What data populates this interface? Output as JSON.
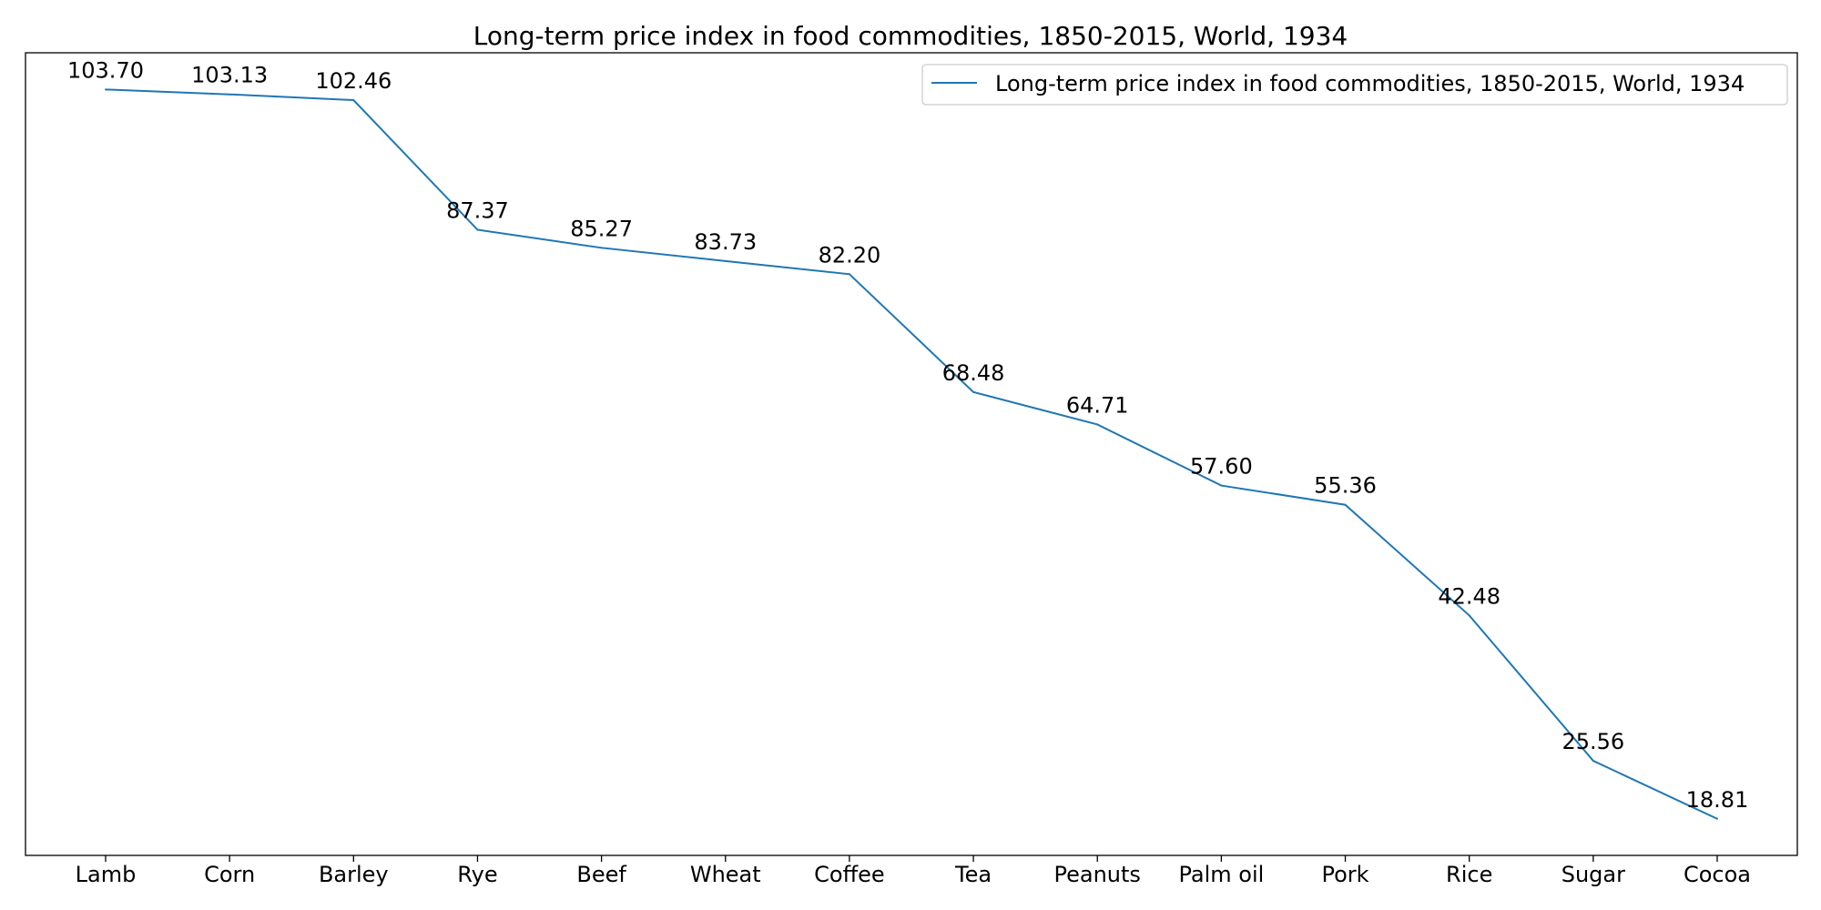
{
  "chart_data": {
    "type": "line",
    "title": "Long-term price index in food commodities, 1850-2015, World, 1934",
    "xlabel": "",
    "ylabel": "",
    "categories": [
      "Lamb",
      "Corn",
      "Barley",
      "Rye",
      "Beef",
      "Wheat",
      "Coffee",
      "Tea",
      "Peanuts",
      "Palm oil",
      "Pork",
      "Rice",
      "Sugar",
      "Cocoa"
    ],
    "series": [
      {
        "name": "Long-term price index in food commodities, 1850-2015, World, 1934",
        "values": [
          103.7,
          103.13,
          102.46,
          87.37,
          85.27,
          83.73,
          82.2,
          68.48,
          64.71,
          57.6,
          55.36,
          42.48,
          25.56,
          18.81
        ],
        "labels": [
          "103.70",
          "103.13",
          "102.46",
          "87.37",
          "85.27",
          "83.73",
          "82.20",
          "68.48",
          "64.71",
          "57.60",
          "55.36",
          "42.48",
          "25.56",
          "18.81"
        ],
        "color": "#1f77b4"
      }
    ],
    "ylim": [
      14.55,
      107.97
    ],
    "y_ticks_visible": false,
    "grid": false,
    "legend": "top-right"
  }
}
